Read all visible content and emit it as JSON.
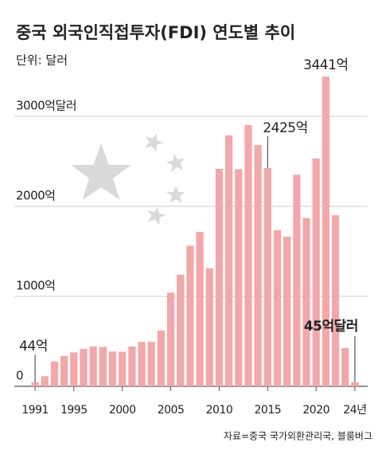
{
  "chart_data": {
    "type": "bar",
    "title": "중국 외국인직접투자(FDI) 연도별 추이",
    "subtitle": "단위: 달러",
    "source": "자료=중국 국가외환관리국, 블룸버그",
    "categories": [
      "1991",
      null,
      null,
      null,
      "1995",
      null,
      null,
      null,
      null,
      "2000",
      null,
      null,
      null,
      null,
      "2005",
      null,
      null,
      null,
      null,
      "2010",
      null,
      null,
      null,
      null,
      "2015",
      null,
      null,
      null,
      null,
      "2020",
      null,
      null,
      null,
      "24년"
    ],
    "values": [
      44,
      112,
      275,
      338,
      377,
      417,
      442,
      438,
      387,
      384,
      442,
      493,
      494,
      621,
      1041,
      1241,
      1562,
      1715,
      1311,
      2416,
      2788,
      2412,
      2903,
      2681,
      2425,
      1734,
      1663,
      2350,
      1870,
      2531,
      3441,
      1900,
      427,
      45
    ],
    "value_labels": [
      "44억",
      null,
      null,
      null,
      null,
      null,
      null,
      null,
      null,
      null,
      null,
      null,
      null,
      null,
      null,
      null,
      null,
      null,
      null,
      null,
      null,
      null,
      null,
      null,
      "2425억",
      null,
      null,
      null,
      null,
      null,
      "3441억",
      null,
      null,
      "45억달러"
    ],
    "color": "#f2a8aa",
    "ylim": [
      0,
      3500
    ],
    "yticks": [
      {
        "value": 0,
        "label": "0"
      },
      {
        "value": 1000,
        "label": "1000억"
      },
      {
        "value": 2000,
        "label": "2000억"
      },
      {
        "value": 3000,
        "label": "3000억달러"
      }
    ],
    "grid": true
  }
}
